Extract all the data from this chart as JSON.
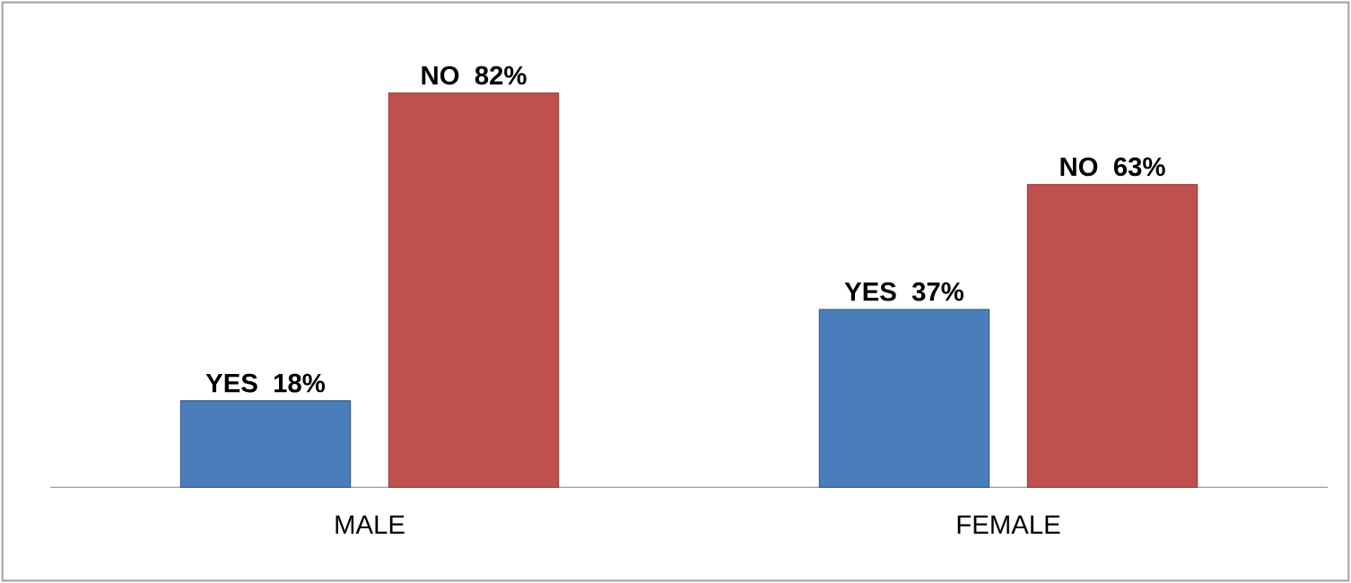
{
  "chart_data": {
    "type": "bar",
    "categories": [
      "MALE",
      "FEMALE"
    ],
    "series": [
      {
        "name": "YES",
        "color": "#4a7ebb",
        "values": [
          18,
          37
        ],
        "value_labels": [
          "18%",
          "37%"
        ]
      },
      {
        "name": "NO",
        "color": "#c0504d",
        "values": [
          82,
          63
        ],
        "value_labels": [
          "82%",
          "63%"
        ]
      }
    ]
  }
}
